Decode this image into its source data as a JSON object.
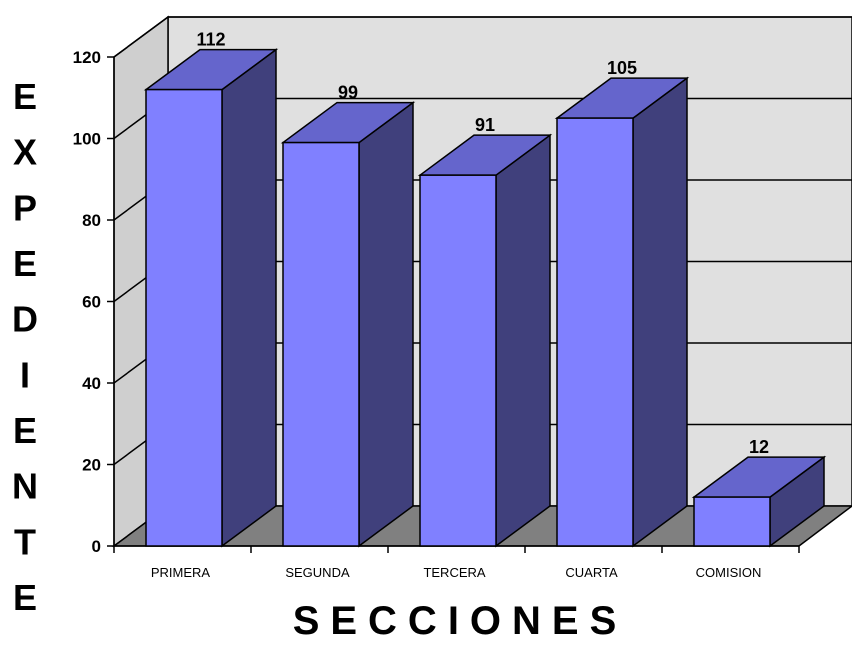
{
  "chart_data": {
    "type": "bar",
    "three_d": true,
    "categories": [
      "PRIMERA",
      "SEGUNDA",
      "TERCERA",
      "CUARTA",
      "COMISION"
    ],
    "values": [
      112,
      99,
      91,
      105,
      12
    ],
    "data_labels": [
      "112",
      "99",
      "91",
      "105",
      "12"
    ],
    "title": "",
    "xlabel": "SECCIONES",
    "ylabel": "EXPEDIENTE",
    "ylim": [
      0,
      120
    ],
    "yticks": [
      "0",
      "20",
      "40",
      "60",
      "80",
      "100",
      "120"
    ],
    "grid": true,
    "legend": "none",
    "colors": {
      "bar_front": "#8080ff",
      "bar_top": "#6565cc",
      "bar_side": "#40407c",
      "back_wall": "#e0e0e0",
      "side_wall": "#cfcfcf",
      "floor": "#808080",
      "axis": "#000000"
    }
  }
}
